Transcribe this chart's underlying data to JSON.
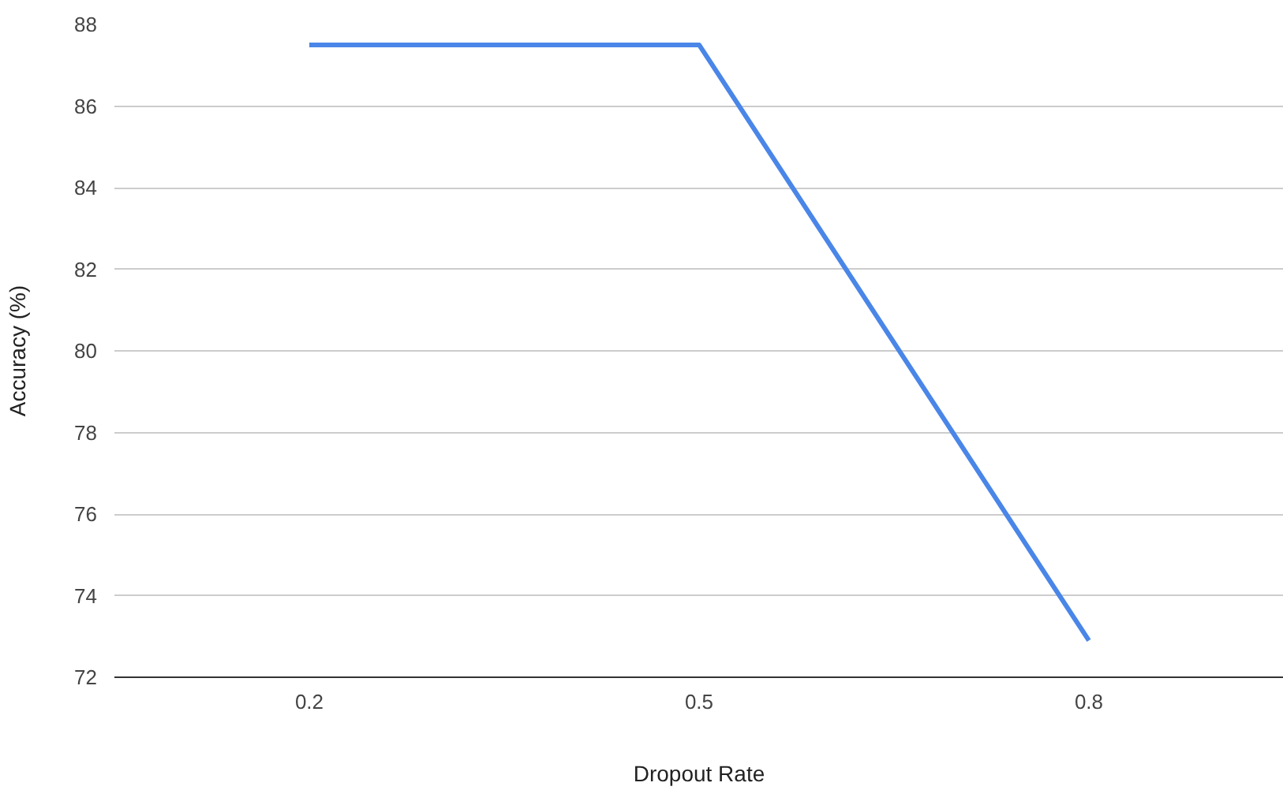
{
  "chart_data": {
    "type": "line",
    "xlabel": "Dropout Rate",
    "ylabel": "Accuracy (%)",
    "categories": [
      "0.2",
      "0.5",
      "0.8"
    ],
    "series": [
      {
        "color": "#4a86e8",
        "values": [
          87.5,
          87.5,
          72.9
        ]
      }
    ],
    "ylim": [
      72,
      88
    ],
    "yticks": [
      72,
      74,
      76,
      78,
      80,
      82,
      84,
      86,
      88
    ],
    "grid": "y",
    "marker": "none",
    "line_style": "solid"
  }
}
